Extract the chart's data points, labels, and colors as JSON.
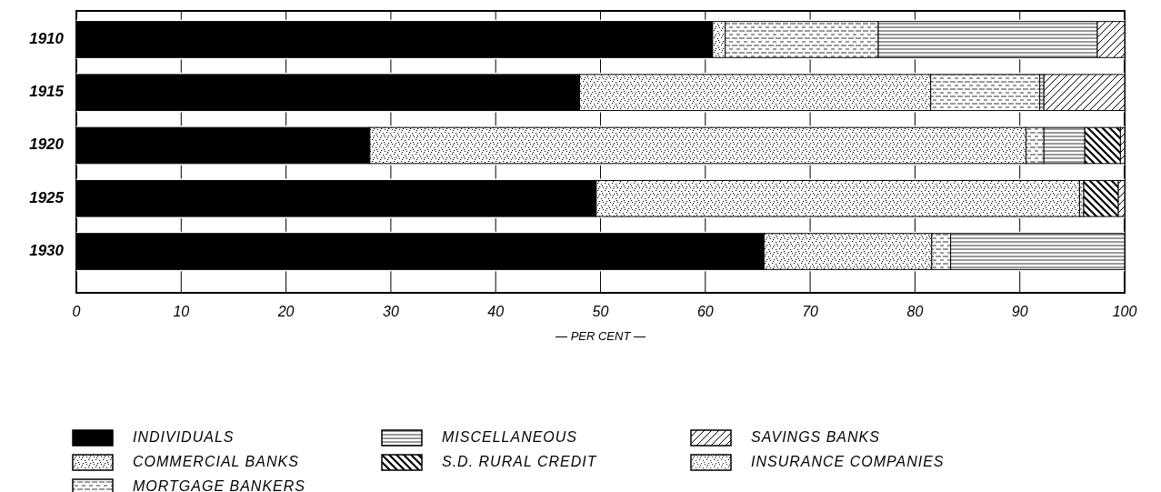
{
  "chart_data": {
    "type": "bar",
    "orientation": "horizontal",
    "stacked": true,
    "categories": [
      "1910",
      "1915",
      "1920",
      "1925",
      "1930"
    ],
    "series": [
      {
        "name": "INDIVIDUALS",
        "color": "#000000",
        "values": [
          60.7,
          48.0,
          28.0,
          49.6,
          65.6
        ]
      },
      {
        "name": "COMMERCIAL BANKS",
        "color": "#000000",
        "values": [
          1.2,
          33.5,
          62.6,
          46.1,
          16.0
        ]
      },
      {
        "name": "MORTGAGE BANKERS",
        "color": "#000000",
        "values": [
          14.6,
          10.4,
          1.7,
          0.4,
          1.8
        ]
      },
      {
        "name": "MISCELLANEOUS",
        "color": "#000000",
        "values": [
          20.9,
          0.4,
          3.9,
          null,
          16.6
        ]
      },
      {
        "name": "S.D. RURAL CREDIT",
        "color": "#000000",
        "values": [
          null,
          null,
          3.4,
          3.3,
          null
        ]
      },
      {
        "name": "SAVINGS BANKS",
        "color": "#000000",
        "values": [
          2.6,
          7.7,
          0.4,
          0.6,
          null
        ]
      },
      {
        "name": "INSURANCE COMPANIES",
        "color": "#000000",
        "values": [
          null,
          null,
          null,
          null,
          null
        ]
      }
    ],
    "xlabel": "— PER CENT —",
    "xlim": [
      0,
      100
    ],
    "xticks": [
      0,
      10,
      20,
      30,
      40,
      50,
      60,
      70,
      80,
      90,
      100
    ],
    "grid": "x",
    "legend": "bottom"
  }
}
